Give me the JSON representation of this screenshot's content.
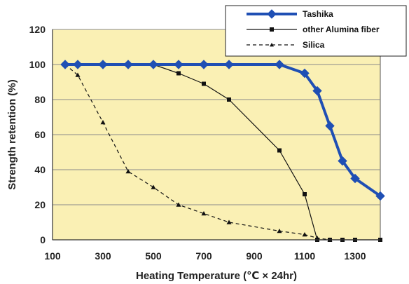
{
  "chart_data": {
    "type": "line",
    "xlabel": "Heating Temperature (℃ × 24hr)",
    "ylabel": "Strength retention (%)",
    "xlim": [
      100,
      1400
    ],
    "ylim": [
      0,
      120
    ],
    "x_ticks": [
      "100",
      "300",
      "500",
      "700",
      "900",
      "1100",
      "1300"
    ],
    "x_tick_values": [
      100,
      300,
      500,
      700,
      900,
      1100,
      1300
    ],
    "y_ticks": [
      "0",
      "20",
      "40",
      "60",
      "80",
      "100",
      "120"
    ],
    "y_tick_values": [
      0,
      20,
      40,
      60,
      80,
      100,
      120
    ],
    "plot_background": "#faf0b4",
    "legend_position": "top-right",
    "series": [
      {
        "name": "Tashika",
        "color": "#1f4fb4",
        "line_style": "solid-thick",
        "marker": "diamond",
        "x": [
          150,
          200,
          300,
          400,
          500,
          600,
          700,
          800,
          1000,
          1100,
          1150,
          1200,
          1250,
          1300,
          1400
        ],
        "y": [
          100,
          100,
          100,
          100,
          100,
          100,
          100,
          100,
          100,
          95,
          85,
          65,
          45,
          35,
          25
        ]
      },
      {
        "name": "other Alumina fiber",
        "color": "#111111",
        "line_style": "solid-thin",
        "marker": "square",
        "x": [
          150,
          200,
          300,
          400,
          500,
          600,
          700,
          800,
          1000,
          1100,
          1150,
          1200,
          1250,
          1300,
          1400
        ],
        "y": [
          100,
          100,
          100,
          100,
          100,
          95,
          89,
          80,
          51,
          26,
          0,
          0,
          0,
          0,
          0
        ]
      },
      {
        "name": "Silica",
        "color": "#111111",
        "line_style": "dashed",
        "marker": "triangle",
        "x": [
          150,
          200,
          300,
          400,
          500,
          600,
          700,
          800,
          1000,
          1100,
          1150,
          1200
        ],
        "y": [
          100,
          94,
          67,
          39,
          30,
          20,
          15,
          10,
          5,
          3,
          1,
          0
        ]
      }
    ]
  }
}
